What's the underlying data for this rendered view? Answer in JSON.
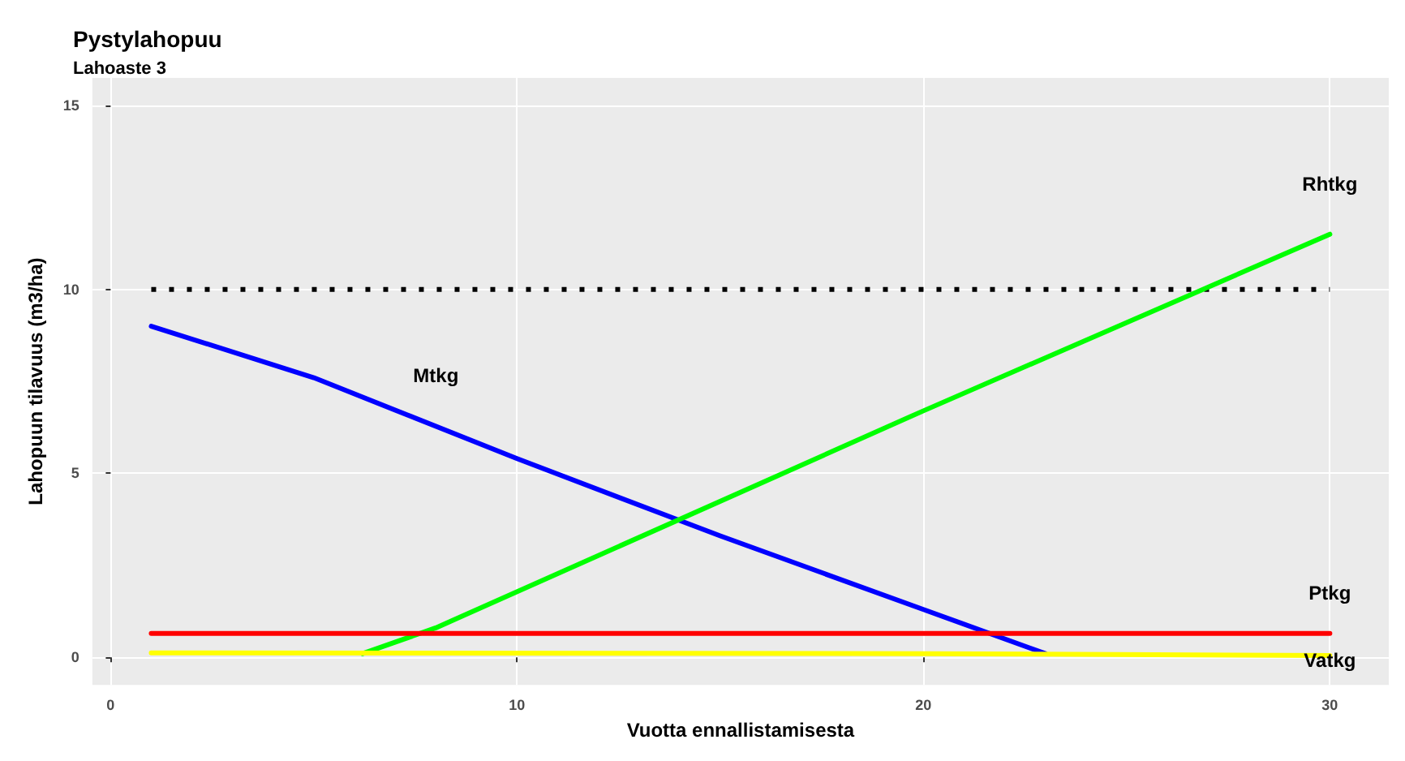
{
  "chart_data": {
    "type": "line",
    "title": "Pystylahopuu",
    "subtitle": "Lahoaste 3",
    "xlabel": "Vuotta ennallistamisesta",
    "ylabel": "Lahopuun tilavuus (m3/ha)",
    "xlim": [
      -0.45,
      31.45
    ],
    "xticks": [
      0,
      10,
      20,
      30
    ],
    "ylim": [
      -0.75,
      15.75
    ],
    "yticks": [
      0,
      5,
      10,
      15
    ],
    "grid": true,
    "legend": false,
    "series": [
      {
        "color": "#000000",
        "line_style": "dotted",
        "x": [
          1,
          30
        ],
        "values": [
          10,
          10
        ]
      },
      {
        "name": "Mtkg",
        "color": "#0000ff",
        "x": [
          1,
          5,
          10,
          15,
          20,
          23
        ],
        "values": [
          9,
          7.6,
          5.4,
          3.3,
          1.3,
          0.1
        ]
      },
      {
        "name": "Rhtkg",
        "color": "#00ff00",
        "x": [
          6.2,
          8,
          20,
          30
        ],
        "values": [
          0.1,
          0.8,
          6.7,
          11.5
        ]
      },
      {
        "name": "Ptkg",
        "color": "#ff0000",
        "x": [
          1,
          30
        ],
        "values": [
          0.65,
          0.65
        ]
      },
      {
        "name": "Vatkg",
        "color": "#ffff00",
        "x": [
          1,
          20,
          30
        ],
        "values": [
          0.12,
          0.1,
          0.05
        ]
      }
    ]
  }
}
